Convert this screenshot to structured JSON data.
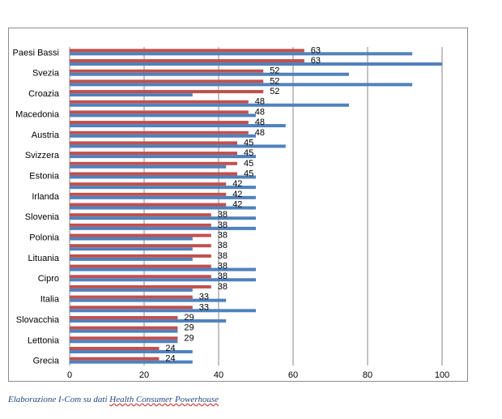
{
  "chart_data": {
    "type": "bar",
    "orientation": "horizontal",
    "categories": [
      "Grecia",
      "",
      "Lettonia",
      "",
      "Slovacchia",
      "",
      "Italia",
      "",
      "Cipro",
      "",
      "Lituania",
      "",
      "Polonia",
      "",
      "Slovenia",
      "",
      "Irlanda",
      "",
      "Estonia",
      "",
      "Svizzera",
      "",
      "Austria",
      "",
      "Macedonia",
      "",
      "Croazia",
      "",
      "Svezia",
      "",
      "Paesi Bassi"
    ],
    "series": [
      {
        "color": "#4f81bd",
        "values": [
          33,
          33,
          29,
          29,
          42,
          50,
          42,
          33,
          50,
          50,
          33,
          33,
          33,
          50,
          50,
          50,
          50,
          50,
          50,
          42,
          50,
          58,
          50,
          58,
          50,
          75,
          33,
          92,
          75,
          100,
          92
        ]
      },
      {
        "color": "#c0504d",
        "values": [
          24,
          24,
          29,
          29,
          29,
          33,
          33,
          38,
          38,
          38,
          38,
          38,
          38,
          38,
          38,
          42,
          42,
          42,
          45,
          45,
          45,
          45,
          48,
          48,
          48,
          48,
          52,
          52,
          52,
          63,
          63
        ]
      }
    ],
    "data_labels": [
      "24",
      "24",
      "29",
      "29",
      "29",
      "33",
      "33",
      "38",
      "38",
      "38",
      "38",
      "38",
      "38",
      "38",
      "38",
      "42",
      "42",
      "42",
      "45",
      "45",
      "45",
      "45",
      "48",
      "48",
      "48",
      "48",
      "52",
      "52",
      "52",
      "63",
      "63"
    ],
    "x_ticks": [
      "0",
      "20",
      "40",
      "60",
      "80",
      "100"
    ],
    "xlim": [
      0,
      100
    ],
    "grid": "vertical"
  },
  "caption": {
    "prefix": "Elaborazione I-Com su dati ",
    "source": "Health Consumer Powerhouse"
  }
}
